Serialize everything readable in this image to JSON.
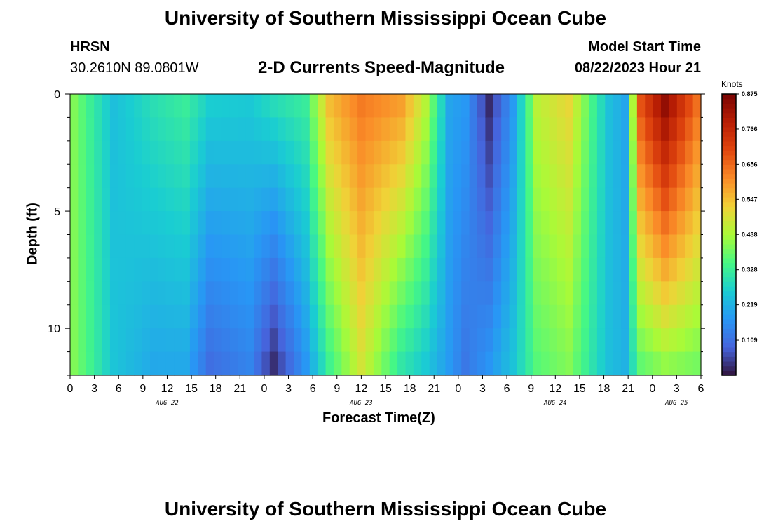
{
  "header": {
    "title": "University of Southern Mississippi Ocean Cube",
    "station": "HRSN",
    "coords": "30.2610N  89.0801W",
    "subtitle": "2-D Currents Speed-Magnitude",
    "model_start_label": "Model Start Time",
    "model_start_value": "08/22/2023 Hour 21"
  },
  "footer": {
    "title": "University of Southern Mississippi Ocean Cube"
  },
  "chart_data": {
    "type": "heatmap",
    "title": "2-D Currents Speed-Magnitude",
    "xlabel": "Forecast Time(Z)",
    "ylabel": "Depth (ft)",
    "x_ticks": [
      "0",
      "3",
      "6",
      "9",
      "12",
      "15",
      "18",
      "21",
      "0",
      "3",
      "6",
      "9",
      "12",
      "15",
      "18",
      "21",
      "0",
      "3",
      "6",
      "9",
      "12",
      "15",
      "18",
      "21",
      "0",
      "3",
      "6"
    ],
    "date_labels": [
      {
        "label": "AUG 22",
        "at_hour": 12
      },
      {
        "label": "AUG 23",
        "at_hour": 36
      },
      {
        "label": "AUG 24",
        "at_hour": 60
      },
      {
        "label": "AUG 25",
        "at_hour": 75
      }
    ],
    "y_ticks": [
      0,
      5,
      10
    ],
    "ylim": [
      0,
      12
    ],
    "xlim_hours": [
      0,
      78
    ],
    "colorbar": {
      "unit": "Knots",
      "min": 0.0,
      "max": 0.875,
      "ticks": [
        "0.875",
        "0.766",
        "0.656",
        "0.547",
        "0.438",
        "0.328",
        "0.219",
        "0.109"
      ]
    },
    "grid": {
      "n_time": 79,
      "n_depth": 12,
      "model": "speed(t,d) sampled every hour (t=0..78) and every foot of depth (d=0.5..11.5)",
      "anchors_note": "knot values in knots at key times; interpolated linearly",
      "anchors": [
        {
          "t": 0,
          "surface": 0.4,
          "bottom": 0.4
        },
        {
          "t": 2,
          "surface": 0.33,
          "bottom": 0.34
        },
        {
          "t": 5,
          "surface": 0.24,
          "bottom": 0.25
        },
        {
          "t": 10,
          "surface": 0.3,
          "bottom": 0.2
        },
        {
          "t": 14,
          "surface": 0.33,
          "bottom": 0.2
        },
        {
          "t": 17,
          "surface": 0.27,
          "bottom": 0.1
        },
        {
          "t": 22,
          "surface": 0.26,
          "bottom": 0.14
        },
        {
          "t": 25,
          "surface": 0.3,
          "bottom": 0.02
        },
        {
          "t": 29,
          "surface": 0.33,
          "bottom": 0.17
        },
        {
          "t": 32,
          "surface": 0.56,
          "bottom": 0.33
        },
        {
          "t": 36,
          "surface": 0.64,
          "bottom": 0.48
        },
        {
          "t": 41,
          "surface": 0.6,
          "bottom": 0.3
        },
        {
          "t": 44,
          "surface": 0.46,
          "bottom": 0.25
        },
        {
          "t": 47,
          "surface": 0.2,
          "bottom": 0.18
        },
        {
          "t": 49,
          "surface": 0.18,
          "bottom": 0.12
        },
        {
          "t": 52,
          "surface": 0.02,
          "bottom": 0.18
        },
        {
          "t": 55,
          "surface": 0.18,
          "bottom": 0.25
        },
        {
          "t": 58,
          "surface": 0.46,
          "bottom": 0.36
        },
        {
          "t": 62,
          "surface": 0.52,
          "bottom": 0.4
        },
        {
          "t": 65,
          "surface": 0.34,
          "bottom": 0.3
        },
        {
          "t": 67,
          "surface": 0.24,
          "bottom": 0.24
        },
        {
          "t": 69,
          "surface": 0.2,
          "bottom": 0.22
        },
        {
          "t": 71,
          "surface": 0.7,
          "bottom": 0.36
        },
        {
          "t": 74,
          "surface": 0.86,
          "bottom": 0.4
        },
        {
          "t": 78,
          "surface": 0.66,
          "bottom": 0.38
        }
      ]
    }
  }
}
